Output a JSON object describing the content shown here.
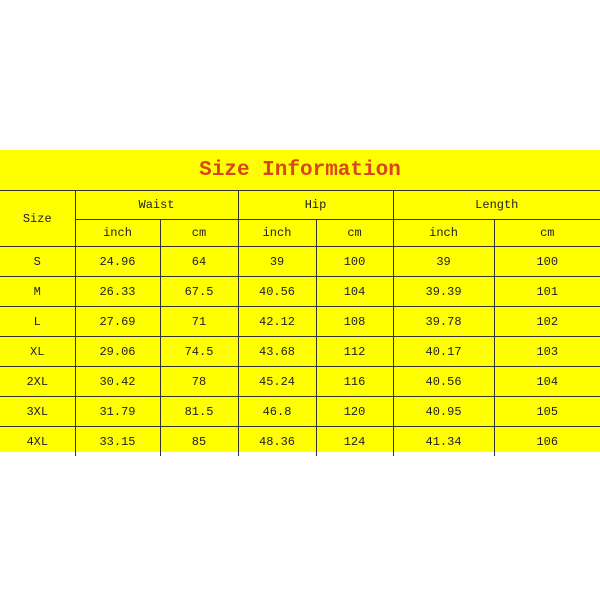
{
  "title": "Size Information",
  "header": {
    "size": "Size",
    "groups": [
      "Waist",
      "Hip",
      "Length"
    ],
    "units": [
      "inch",
      "cm",
      "inch",
      "cm",
      "inch",
      "cm"
    ]
  },
  "rows": [
    [
      "S",
      "24.96",
      "64",
      "39",
      "100",
      "39",
      "100"
    ],
    [
      "M",
      "26.33",
      "67.5",
      "40.56",
      "104",
      "39.39",
      "101"
    ],
    [
      "L",
      "27.69",
      "71",
      "42.12",
      "108",
      "39.78",
      "102"
    ],
    [
      "XL",
      "29.06",
      "74.5",
      "43.68",
      "112",
      "40.17",
      "103"
    ],
    [
      "2XL",
      "30.42",
      "78",
      "45.24",
      "116",
      "40.56",
      "104"
    ],
    [
      "3XL",
      "31.79",
      "81.5",
      "46.8",
      "120",
      "40.95",
      "105"
    ],
    [
      "4XL",
      "33.15",
      "85",
      "48.36",
      "124",
      "41.34",
      "106"
    ]
  ],
  "colors": {
    "background": "#ffff00",
    "title": "#d9461a"
  }
}
